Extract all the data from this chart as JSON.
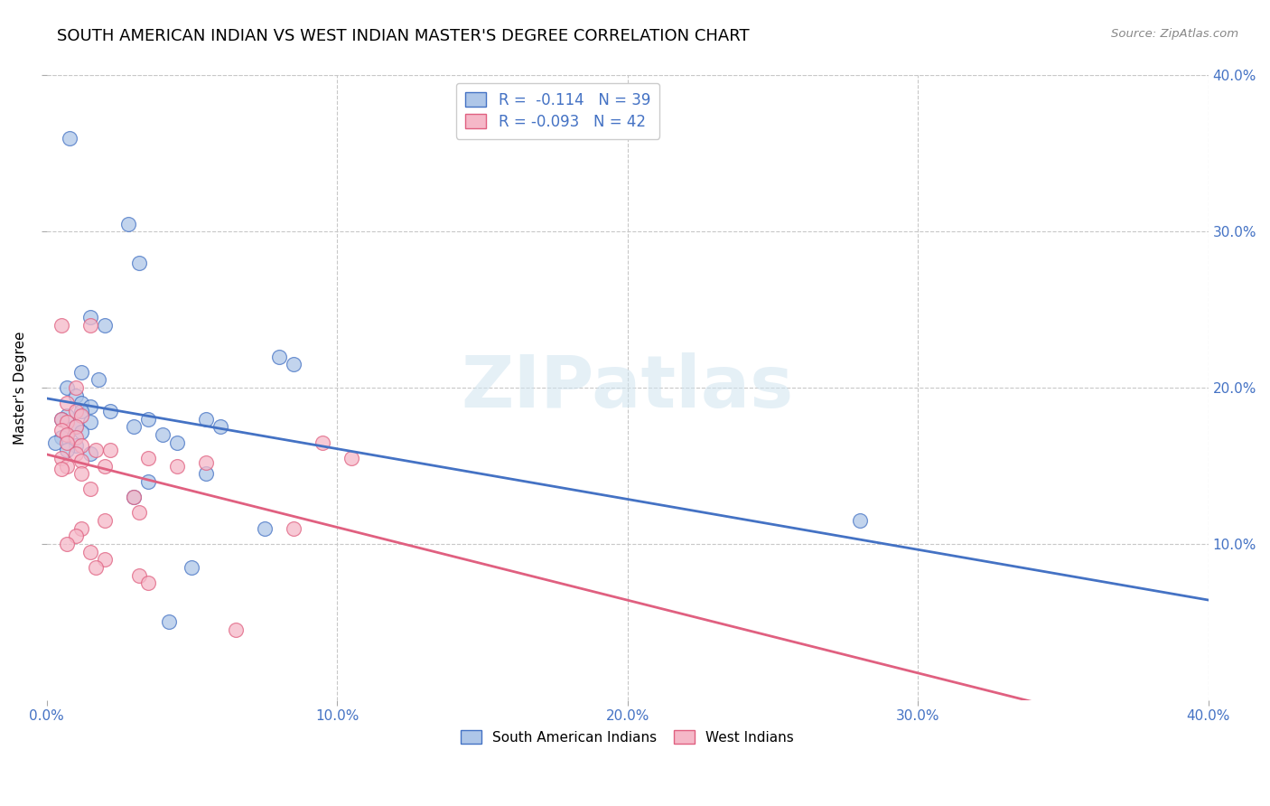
{
  "title": "SOUTH AMERICAN INDIAN VS WEST INDIAN MASTER'S DEGREE CORRELATION CHART",
  "source": "Source: ZipAtlas.com",
  "ylabel": "Master's Degree",
  "watermark": "ZIPatlas",
  "legend_label1": "South American Indians",
  "legend_label2": "West Indians",
  "R1": -0.114,
  "N1": 39,
  "R2": -0.093,
  "N2": 42,
  "blue_color": "#aec6e8",
  "pink_color": "#f5b8c8",
  "blue_line_color": "#4472c4",
  "pink_line_color": "#e06080",
  "blue_scatter": [
    [
      0.8,
      36.0
    ],
    [
      2.8,
      30.5
    ],
    [
      3.2,
      28.0
    ],
    [
      1.5,
      24.5
    ],
    [
      2.0,
      24.0
    ],
    [
      1.2,
      21.0
    ],
    [
      1.8,
      20.5
    ],
    [
      0.7,
      20.0
    ],
    [
      1.0,
      19.5
    ],
    [
      1.2,
      19.0
    ],
    [
      1.5,
      18.8
    ],
    [
      1.2,
      18.5
    ],
    [
      0.7,
      18.2
    ],
    [
      0.5,
      18.0
    ],
    [
      1.5,
      17.8
    ],
    [
      1.0,
      17.5
    ],
    [
      1.2,
      17.2
    ],
    [
      0.7,
      17.0
    ],
    [
      0.5,
      16.8
    ],
    [
      0.3,
      16.5
    ],
    [
      1.0,
      16.3
    ],
    [
      0.7,
      16.0
    ],
    [
      1.5,
      15.8
    ],
    [
      2.2,
      18.5
    ],
    [
      3.5,
      18.0
    ],
    [
      3.0,
      17.5
    ],
    [
      5.5,
      18.0
    ],
    [
      8.0,
      22.0
    ],
    [
      8.5,
      21.5
    ],
    [
      6.0,
      17.5
    ],
    [
      4.0,
      17.0
    ],
    [
      4.5,
      16.5
    ],
    [
      3.5,
      14.0
    ],
    [
      5.5,
      14.5
    ],
    [
      7.5,
      11.0
    ],
    [
      3.0,
      13.0
    ],
    [
      5.0,
      8.5
    ],
    [
      4.2,
      5.0
    ],
    [
      28.0,
      11.5
    ]
  ],
  "pink_scatter": [
    [
      0.5,
      24.0
    ],
    [
      1.5,
      24.0
    ],
    [
      1.0,
      20.0
    ],
    [
      0.7,
      19.0
    ],
    [
      1.0,
      18.5
    ],
    [
      1.2,
      18.2
    ],
    [
      0.5,
      18.0
    ],
    [
      0.7,
      17.8
    ],
    [
      1.0,
      17.5
    ],
    [
      0.5,
      17.3
    ],
    [
      0.7,
      17.0
    ],
    [
      1.0,
      16.8
    ],
    [
      0.7,
      16.5
    ],
    [
      1.2,
      16.3
    ],
    [
      1.7,
      16.0
    ],
    [
      1.0,
      15.8
    ],
    [
      0.5,
      15.5
    ],
    [
      1.2,
      15.3
    ],
    [
      0.7,
      15.0
    ],
    [
      0.5,
      14.8
    ],
    [
      1.2,
      14.5
    ],
    [
      2.2,
      16.0
    ],
    [
      2.0,
      15.0
    ],
    [
      1.5,
      13.5
    ],
    [
      3.5,
      15.5
    ],
    [
      4.5,
      15.0
    ],
    [
      3.0,
      13.0
    ],
    [
      5.5,
      15.2
    ],
    [
      3.2,
      12.0
    ],
    [
      2.0,
      11.5
    ],
    [
      1.2,
      11.0
    ],
    [
      1.0,
      10.5
    ],
    [
      0.7,
      10.0
    ],
    [
      1.5,
      9.5
    ],
    [
      2.0,
      9.0
    ],
    [
      1.7,
      8.5
    ],
    [
      3.2,
      8.0
    ],
    [
      3.5,
      7.5
    ],
    [
      9.5,
      16.5
    ],
    [
      10.5,
      15.5
    ],
    [
      8.5,
      11.0
    ],
    [
      6.5,
      4.5
    ]
  ],
  "xlim": [
    0,
    40
  ],
  "ylim": [
    0,
    40
  ],
  "xticks": [
    0,
    10,
    20,
    30,
    40
  ],
  "yticks": [
    10,
    20,
    30,
    40
  ],
  "xticklabels": [
    "0.0%",
    "10.0%",
    "20.0%",
    "30.0%",
    "40.0%"
  ],
  "yticklabels": [
    "10.0%",
    "20.0%",
    "30.0%",
    "40.0%"
  ],
  "grid_color": "#c8c8c8",
  "background_color": "#ffffff",
  "axis_color": "#4472c4",
  "title_fontsize": 13,
  "tick_fontsize": 11,
  "ylabel_fontsize": 11
}
